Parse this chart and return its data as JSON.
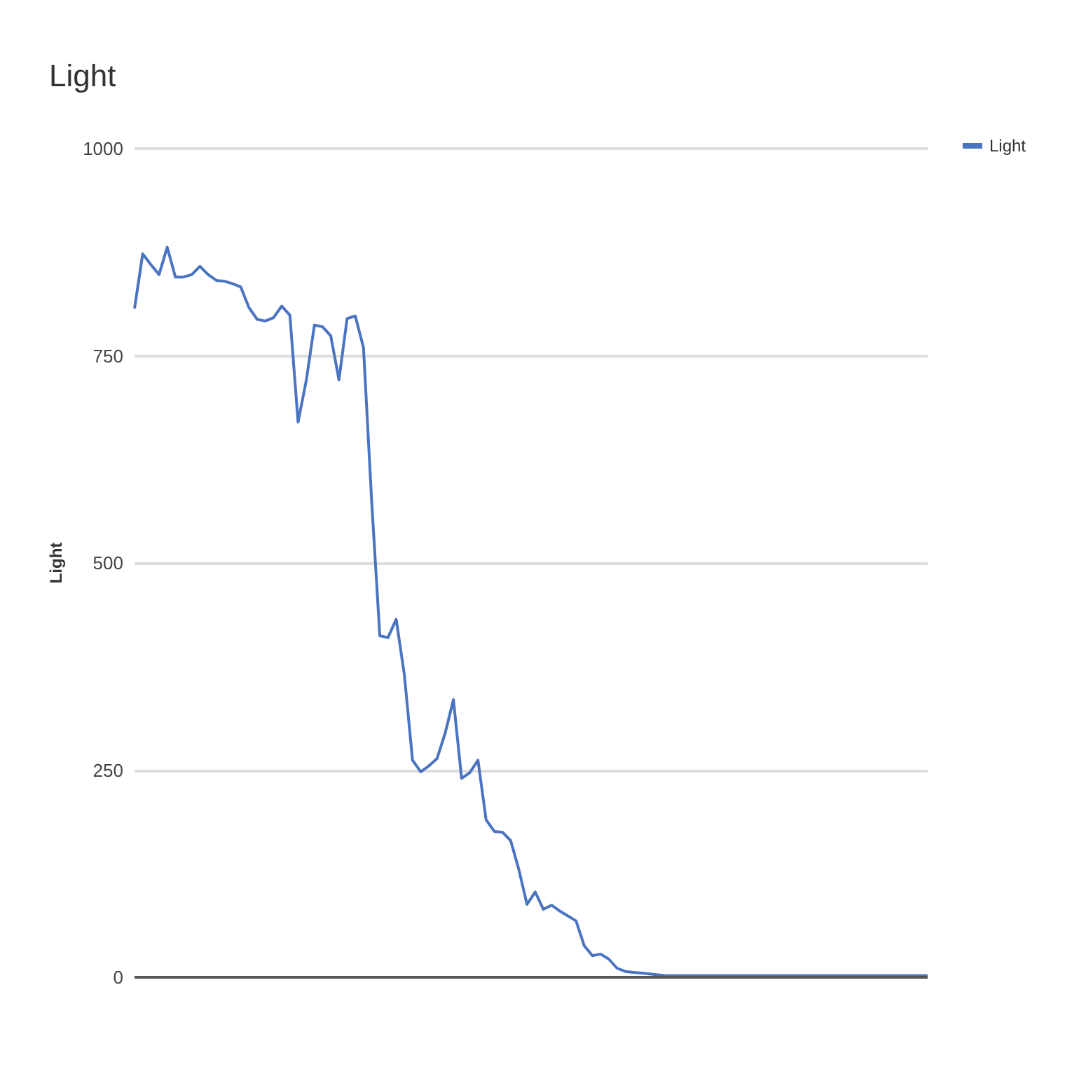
{
  "chart_data": {
    "type": "line",
    "title": "Light",
    "ylabel": "Light",
    "categories": [
      null,
      null,
      null,
      null,
      null,
      null,
      null,
      null,
      null,
      null,
      null,
      null,
      null,
      null,
      null,
      null,
      null,
      null,
      null,
      null,
      null,
      null,
      null,
      null,
      null,
      null,
      null,
      null,
      null,
      null,
      null,
      null,
      null,
      null,
      null,
      null,
      null,
      null,
      null,
      null,
      null,
      null,
      null,
      null,
      null,
      null,
      null,
      null,
      null,
      null,
      null,
      null,
      null,
      null,
      null,
      null,
      null,
      null,
      null,
      null,
      null,
      null,
      null,
      null,
      null,
      null,
      null,
      null,
      null,
      null,
      null,
      null,
      null,
      null,
      null,
      null,
      null,
      null,
      null,
      null,
      null,
      null,
      null,
      null,
      null,
      null,
      null,
      null,
      null,
      null,
      null,
      null,
      null,
      null,
      null,
      null,
      null,
      null
    ],
    "series": [
      {
        "name": "Light",
        "color": "#4a74c0",
        "values": [
          807,
          873,
          860,
          848,
          881,
          845,
          845,
          848,
          858,
          848,
          841,
          840,
          837,
          833,
          808,
          794,
          792,
          796,
          810,
          799,
          670,
          720,
          787,
          785,
          774,
          721,
          795,
          798,
          760,
          575,
          412,
          410,
          432,
          365,
          262,
          248,
          255,
          264,
          295,
          335,
          240,
          247,
          262,
          190,
          176,
          175,
          165,
          130,
          88,
          103,
          82,
          87,
          80,
          74,
          68,
          38,
          26,
          28,
          22,
          11,
          7,
          6,
          5,
          4,
          3,
          2,
          2,
          2,
          2,
          2,
          2,
          2,
          2,
          2,
          2,
          2,
          2,
          2,
          2,
          2,
          2,
          2,
          2,
          2,
          2,
          2,
          2,
          2,
          2,
          2,
          2,
          2,
          2,
          2,
          2,
          2,
          2,
          2
        ]
      }
    ],
    "ylim": [
      0,
      1000
    ],
    "yticks": [
      0,
      250,
      500,
      750,
      1000
    ],
    "grid": "y",
    "legend": "top right",
    "line_style": "solid",
    "tick_labels": "y"
  }
}
